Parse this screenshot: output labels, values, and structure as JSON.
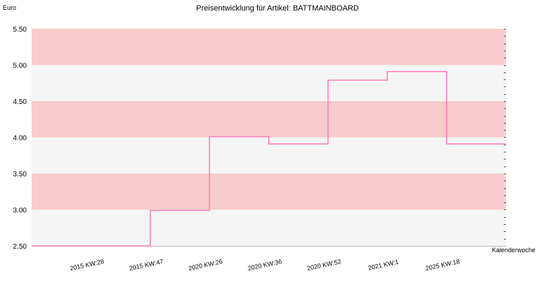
{
  "chart_data": {
    "type": "line",
    "step": true,
    "title": "Preisentwicklung für Artikel: BATTMAINBOARD",
    "ylabel": "Euro",
    "xlabel": "Kalenderwoche",
    "ylim": [
      2.5,
      5.5
    ],
    "yticks": [
      "2.50",
      "3.00",
      "3.50",
      "4.00",
      "4.50",
      "5.00",
      "5.50"
    ],
    "categories": [
      "2015 KW:28",
      "2015 KW:47",
      "2020 KW:26",
      "2020 KW:36",
      "2020 KW:52",
      "2021 KW:1",
      "2025 KW:18"
    ],
    "series": [
      {
        "values": [
          2.5,
          2.99,
          4.01,
          3.91,
          4.79,
          4.91,
          3.91
        ]
      }
    ],
    "grid": true,
    "bands": [
      "#f8cccc",
      "#f5f5f5"
    ],
    "line_color": "#ff80c0"
  }
}
